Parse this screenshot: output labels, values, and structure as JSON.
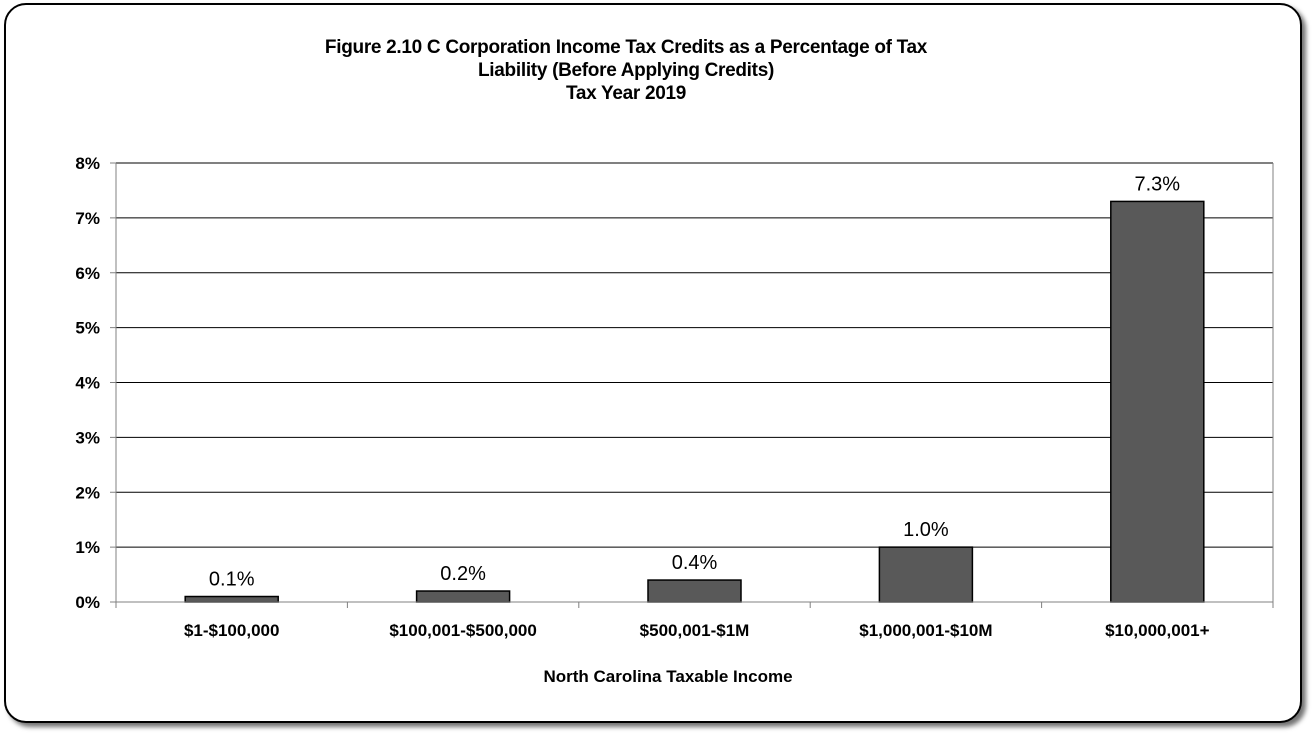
{
  "chart_data": {
    "type": "bar",
    "title_lines": [
      "Figure 2.10 C Corporation Income Tax Credits as a Percentage of Tax",
      "Liability (Before Applying Credits)",
      "Tax Year 2019"
    ],
    "xlabel": "North Carolina  Taxable  Income",
    "ylabel": "",
    "categories": [
      "$1-$100,000",
      "$100,001-$500,000",
      "$500,001-$1M",
      "$1,000,001-$10M",
      "$10,000,001+"
    ],
    "values": [
      0.1,
      0.2,
      0.4,
      1.0,
      7.3
    ],
    "data_labels": [
      "0.1%",
      "0.2%",
      "0.4%",
      "1.0%",
      "7.3%"
    ],
    "y_ticks": [
      0,
      1,
      2,
      3,
      4,
      5,
      6,
      7,
      8
    ],
    "y_tick_labels": [
      "0%",
      "1%",
      "2%",
      "3%",
      "4%",
      "5%",
      "6%",
      "7%",
      "8%"
    ],
    "ylim": [
      0,
      8
    ],
    "grid": true,
    "legend": "none",
    "colors": {
      "bar_fill": "#595959",
      "bar_stroke": "#000000",
      "grid": "#000000",
      "axis": "#808080"
    }
  }
}
